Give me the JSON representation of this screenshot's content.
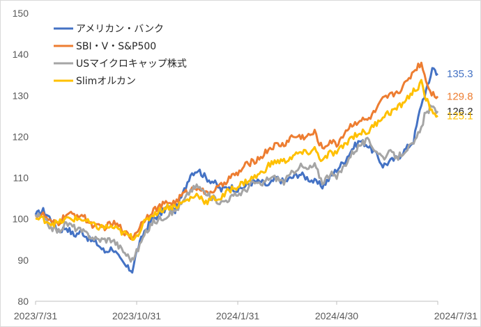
{
  "chart_data": {
    "type": "line",
    "title": "",
    "xlabel": "",
    "ylabel": "",
    "ylim": [
      80,
      150
    ],
    "yticks": [
      80,
      90,
      100,
      110,
      120,
      130,
      140,
      150
    ],
    "x_tick_labels": [
      "2023/7/31",
      "2023/10/31",
      "2024/1/31",
      "2024/4/30",
      "2024/7/31"
    ],
    "x_start": "2023-07-31",
    "x_end": "2024-07-31",
    "grid": false,
    "legend_position": "top-left",
    "series": [
      {
        "name": "アメリカン・バンク",
        "color": "#4472C4",
        "end_value": 135.3,
        "points": [
          [
            "2023-07-31",
            101
          ],
          [
            "2023-08-07",
            102
          ],
          [
            "2023-08-14",
            100
          ],
          [
            "2023-08-21",
            97
          ],
          [
            "2023-08-28",
            98
          ],
          [
            "2023-09-04",
            96
          ],
          [
            "2023-09-11",
            97
          ],
          [
            "2023-09-18",
            95
          ],
          [
            "2023-09-25",
            94
          ],
          [
            "2023-10-02",
            92
          ],
          [
            "2023-10-09",
            93
          ],
          [
            "2023-10-16",
            90
          ],
          [
            "2023-10-23",
            88
          ],
          [
            "2023-10-27",
            87.5
          ],
          [
            "2023-10-31",
            92
          ],
          [
            "2023-11-07",
            97
          ],
          [
            "2023-11-14",
            100
          ],
          [
            "2023-11-21",
            101
          ],
          [
            "2023-11-28",
            103
          ],
          [
            "2023-12-05",
            102
          ],
          [
            "2023-12-12",
            106
          ],
          [
            "2023-12-19",
            111
          ],
          [
            "2023-12-26",
            112
          ],
          [
            "2024-01-02",
            110
          ],
          [
            "2024-01-09",
            109
          ],
          [
            "2024-01-16",
            107
          ],
          [
            "2024-01-23",
            108
          ],
          [
            "2024-01-31",
            107
          ],
          [
            "2024-02-07",
            108
          ],
          [
            "2024-02-14",
            109
          ],
          [
            "2024-02-21",
            109
          ],
          [
            "2024-02-28",
            108
          ],
          [
            "2024-03-06",
            110
          ],
          [
            "2024-03-13",
            109
          ],
          [
            "2024-03-20",
            110
          ],
          [
            "2024-03-27",
            111
          ],
          [
            "2024-04-03",
            110
          ],
          [
            "2024-04-10",
            109
          ],
          [
            "2024-04-17",
            108
          ],
          [
            "2024-04-24",
            110
          ],
          [
            "2024-04-30",
            112
          ],
          [
            "2024-05-07",
            114
          ],
          [
            "2024-05-14",
            117
          ],
          [
            "2024-05-21",
            119
          ],
          [
            "2024-05-28",
            118
          ],
          [
            "2024-06-04",
            116
          ],
          [
            "2024-06-11",
            113
          ],
          [
            "2024-06-18",
            114
          ],
          [
            "2024-06-25",
            115
          ],
          [
            "2024-07-02",
            117
          ],
          [
            "2024-07-09",
            119
          ],
          [
            "2024-07-16",
            128
          ],
          [
            "2024-07-23",
            133
          ],
          [
            "2024-07-26",
            137
          ],
          [
            "2024-07-31",
            135.3
          ]
        ]
      },
      {
        "name": "SBI・V・S&P500",
        "color": "#ED7D31",
        "end_value": 129.8,
        "points": [
          [
            "2023-07-31",
            101
          ],
          [
            "2023-08-07",
            101
          ],
          [
            "2023-08-14",
            99
          ],
          [
            "2023-08-21",
            99
          ],
          [
            "2023-08-28",
            101
          ],
          [
            "2023-09-04",
            101
          ],
          [
            "2023-09-11",
            101
          ],
          [
            "2023-09-18",
            99
          ],
          [
            "2023-09-25",
            98
          ],
          [
            "2023-10-02",
            98
          ],
          [
            "2023-10-09",
            99
          ],
          [
            "2023-10-16",
            98
          ],
          [
            "2023-10-23",
            96
          ],
          [
            "2023-10-27",
            95.5
          ],
          [
            "2023-10-31",
            97
          ],
          [
            "2023-11-07",
            100
          ],
          [
            "2023-11-14",
            102
          ],
          [
            "2023-11-21",
            103
          ],
          [
            "2023-11-28",
            104
          ],
          [
            "2023-12-05",
            104
          ],
          [
            "2023-12-12",
            106
          ],
          [
            "2023-12-19",
            107
          ],
          [
            "2023-12-26",
            108
          ],
          [
            "2024-01-02",
            106
          ],
          [
            "2024-01-09",
            107
          ],
          [
            "2024-01-16",
            108
          ],
          [
            "2024-01-23",
            110
          ],
          [
            "2024-01-31",
            111
          ],
          [
            "2024-02-07",
            113
          ],
          [
            "2024-02-14",
            114
          ],
          [
            "2024-02-21",
            115
          ],
          [
            "2024-02-28",
            117
          ],
          [
            "2024-03-06",
            118
          ],
          [
            "2024-03-13",
            118
          ],
          [
            "2024-03-20",
            120
          ],
          [
            "2024-03-27",
            120
          ],
          [
            "2024-04-03",
            120
          ],
          [
            "2024-04-10",
            121
          ],
          [
            "2024-04-17",
            117
          ],
          [
            "2024-04-24",
            119
          ],
          [
            "2024-04-30",
            118
          ],
          [
            "2024-05-07",
            121
          ],
          [
            "2024-05-14",
            123
          ],
          [
            "2024-05-21",
            124
          ],
          [
            "2024-05-28",
            124
          ],
          [
            "2024-06-04",
            126
          ],
          [
            "2024-06-11",
            129
          ],
          [
            "2024-06-18",
            130
          ],
          [
            "2024-06-25",
            131
          ],
          [
            "2024-07-02",
            133
          ],
          [
            "2024-07-09",
            136
          ],
          [
            "2024-07-16",
            138
          ],
          [
            "2024-07-19",
            135
          ],
          [
            "2024-07-24",
            131
          ],
          [
            "2024-07-31",
            129.8
          ]
        ]
      },
      {
        "name": "USマイクロキャップ株式",
        "color": "#A5A5A5",
        "end_value": 126.2,
        "points": [
          [
            "2023-07-31",
            101
          ],
          [
            "2023-08-07",
            100
          ],
          [
            "2023-08-14",
            98
          ],
          [
            "2023-08-21",
            97
          ],
          [
            "2023-08-28",
            99
          ],
          [
            "2023-09-04",
            98
          ],
          [
            "2023-09-11",
            97
          ],
          [
            "2023-09-18",
            96
          ],
          [
            "2023-09-25",
            95
          ],
          [
            "2023-10-02",
            95
          ],
          [
            "2023-10-09",
            95
          ],
          [
            "2023-10-16",
            93
          ],
          [
            "2023-10-23",
            91
          ],
          [
            "2023-10-27",
            90
          ],
          [
            "2023-10-31",
            92
          ],
          [
            "2023-11-07",
            96
          ],
          [
            "2023-11-14",
            99
          ],
          [
            "2023-11-21",
            100
          ],
          [
            "2023-11-28",
            101
          ],
          [
            "2023-12-05",
            102
          ],
          [
            "2023-12-12",
            104
          ],
          [
            "2023-12-19",
            107
          ],
          [
            "2023-12-26",
            108
          ],
          [
            "2024-01-02",
            106
          ],
          [
            "2024-01-09",
            105
          ],
          [
            "2024-01-16",
            104
          ],
          [
            "2024-01-23",
            105
          ],
          [
            "2024-01-31",
            106
          ],
          [
            "2024-02-07",
            107
          ],
          [
            "2024-02-14",
            109
          ],
          [
            "2024-02-21",
            108
          ],
          [
            "2024-02-28",
            110
          ],
          [
            "2024-03-06",
            110
          ],
          [
            "2024-03-13",
            109
          ],
          [
            "2024-03-20",
            111
          ],
          [
            "2024-03-27",
            113
          ],
          [
            "2024-04-03",
            112
          ],
          [
            "2024-04-10",
            113
          ],
          [
            "2024-04-17",
            109
          ],
          [
            "2024-04-24",
            111
          ],
          [
            "2024-04-30",
            110
          ],
          [
            "2024-05-07",
            113
          ],
          [
            "2024-05-14",
            116
          ],
          [
            "2024-05-21",
            118
          ],
          [
            "2024-05-28",
            119
          ],
          [
            "2024-06-04",
            117
          ],
          [
            "2024-06-11",
            115
          ],
          [
            "2024-06-18",
            116
          ],
          [
            "2024-06-25",
            115
          ],
          [
            "2024-07-02",
            117
          ],
          [
            "2024-07-09",
            118
          ],
          [
            "2024-07-16",
            122
          ],
          [
            "2024-07-19",
            125
          ],
          [
            "2024-07-24",
            127
          ],
          [
            "2024-07-31",
            126.2
          ]
        ]
      },
      {
        "name": "Slimオルカン",
        "color": "#FFC000",
        "end_value": 125.1,
        "points": [
          [
            "2023-07-31",
            100
          ],
          [
            "2023-08-07",
            100
          ],
          [
            "2023-08-14",
            99
          ],
          [
            "2023-08-21",
            99
          ],
          [
            "2023-08-28",
            100
          ],
          [
            "2023-09-04",
            100
          ],
          [
            "2023-09-11",
            100
          ],
          [
            "2023-09-18",
            99
          ],
          [
            "2023-09-25",
            98
          ],
          [
            "2023-10-02",
            98
          ],
          [
            "2023-10-09",
            98
          ],
          [
            "2023-10-16",
            97
          ],
          [
            "2023-10-23",
            96
          ],
          [
            "2023-10-27",
            95.5
          ],
          [
            "2023-10-31",
            96
          ],
          [
            "2023-11-07",
            99
          ],
          [
            "2023-11-14",
            101
          ],
          [
            "2023-11-21",
            102
          ],
          [
            "2023-11-28",
            103
          ],
          [
            "2023-12-05",
            103
          ],
          [
            "2023-12-12",
            104
          ],
          [
            "2023-12-19",
            105
          ],
          [
            "2023-12-26",
            106
          ],
          [
            "2024-01-02",
            104
          ],
          [
            "2024-01-09",
            105
          ],
          [
            "2024-01-16",
            105
          ],
          [
            "2024-01-23",
            107
          ],
          [
            "2024-01-31",
            108
          ],
          [
            "2024-02-07",
            109
          ],
          [
            "2024-02-14",
            110
          ],
          [
            "2024-02-21",
            111
          ],
          [
            "2024-02-28",
            113
          ],
          [
            "2024-03-06",
            114
          ],
          [
            "2024-03-13",
            114
          ],
          [
            "2024-03-20",
            115
          ],
          [
            "2024-03-27",
            116
          ],
          [
            "2024-04-03",
            116
          ],
          [
            "2024-04-10",
            117
          ],
          [
            "2024-04-17",
            114
          ],
          [
            "2024-04-24",
            116
          ],
          [
            "2024-04-30",
            116
          ],
          [
            "2024-05-07",
            118
          ],
          [
            "2024-05-14",
            120
          ],
          [
            "2024-05-21",
            121
          ],
          [
            "2024-05-28",
            121
          ],
          [
            "2024-06-04",
            123
          ],
          [
            "2024-06-11",
            125
          ],
          [
            "2024-06-18",
            126
          ],
          [
            "2024-06-25",
            127
          ],
          [
            "2024-07-02",
            129
          ],
          [
            "2024-07-09",
            131
          ],
          [
            "2024-07-16",
            133
          ],
          [
            "2024-07-19",
            130
          ],
          [
            "2024-07-24",
            127
          ],
          [
            "2024-07-31",
            125.1
          ]
        ]
      }
    ]
  }
}
